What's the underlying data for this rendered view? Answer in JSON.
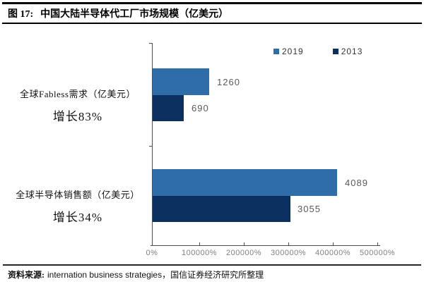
{
  "title": {
    "prefix": "图 17:",
    "text": "中国大陆半导体代工厂市场规模（亿美元）"
  },
  "legend": {
    "items": [
      {
        "label": "2019",
        "color": "#2E6DA8"
      },
      {
        "label": "2013",
        "color": "#0B3060"
      }
    ]
  },
  "chart_data": {
    "type": "bar",
    "orientation": "horizontal",
    "title": "中国大陆半导体代工厂市场规模（亿美元）",
    "categories": [
      "全球Fabless需求（亿美元）",
      "全球半导体销售额（亿美元）"
    ],
    "growth_labels": [
      "增长83%",
      "增长34%"
    ],
    "series": [
      {
        "name": "2019",
        "color": "#2E6DA8",
        "values": [
          1260,
          4089
        ]
      },
      {
        "name": "2013",
        "color": "#0B3060",
        "values": [
          690,
          3055
        ]
      }
    ],
    "x_axis": {
      "tick_labels": [
        "0%",
        "100000%",
        "200000%",
        "300000%",
        "400000%",
        "500000%"
      ],
      "value_max": 5000
    },
    "legend_position": "top-right",
    "grid": false
  },
  "footer": {
    "source_label": "资料来源:",
    "source_text": "internation business strategies，国信证券经济研究所整理"
  }
}
